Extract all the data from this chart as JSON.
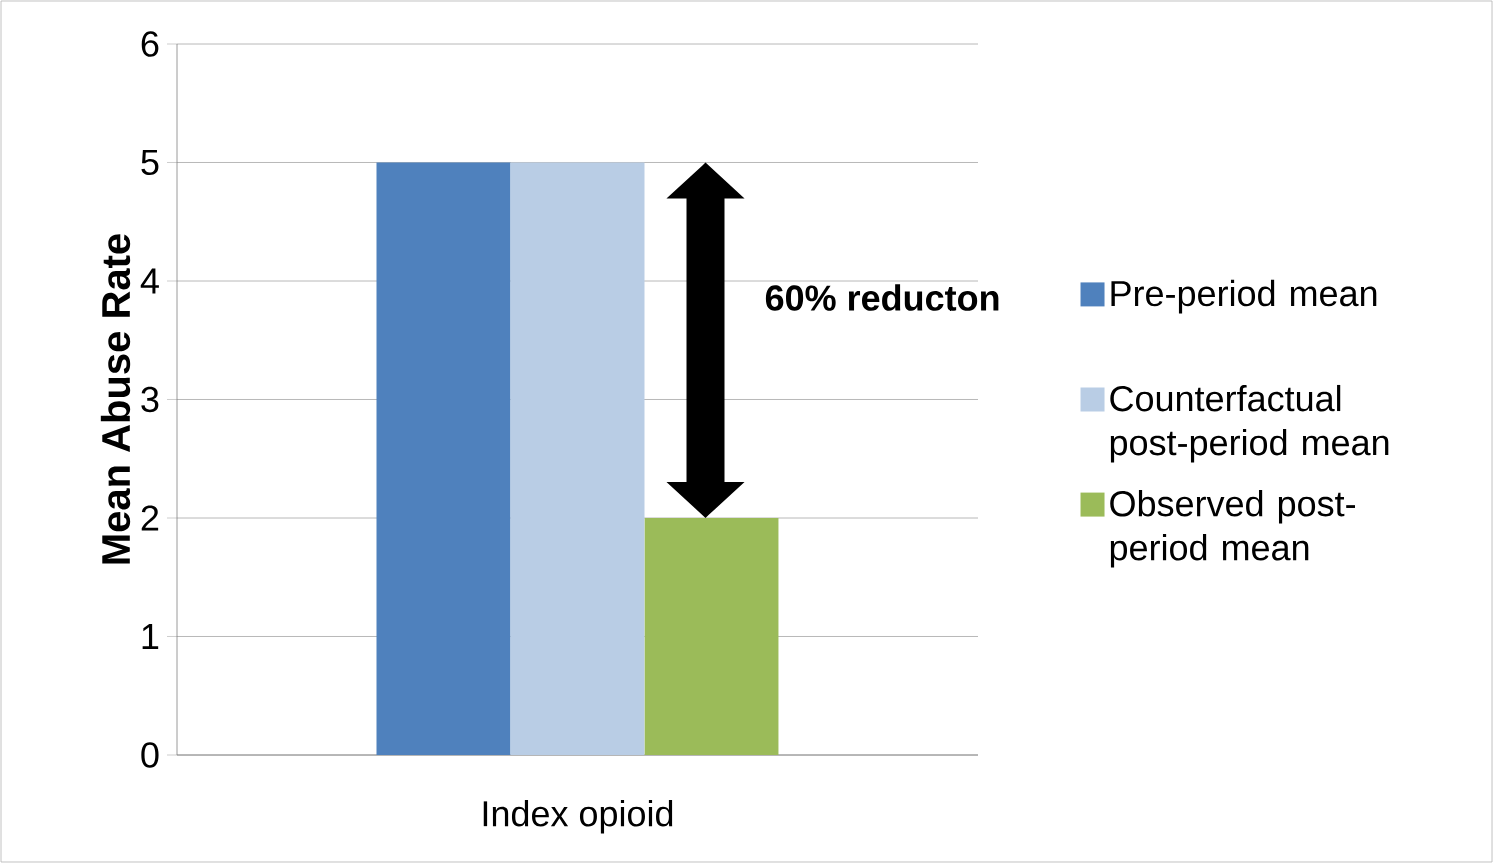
{
  "chart_data": {
    "type": "bar",
    "ylabel": "Mean Abuse Rate",
    "categories": [
      "Index opioid"
    ],
    "series": [
      {
        "name": "Pre-period mean",
        "color": "#4f81bd",
        "values": [
          5
        ]
      },
      {
        "name": "Counterfactual post-period mean",
        "color": "#b9cde5",
        "values": [
          5
        ]
      },
      {
        "name": "Observed post-period mean",
        "color": "#9bbb59",
        "values": [
          2
        ]
      }
    ],
    "annotations": [
      "60% reducton"
    ],
    "ylim": [
      0,
      6
    ],
    "yticks": [
      0,
      1,
      2,
      3,
      4,
      5,
      6
    ],
    "grid": "y",
    "legend": "right"
  }
}
